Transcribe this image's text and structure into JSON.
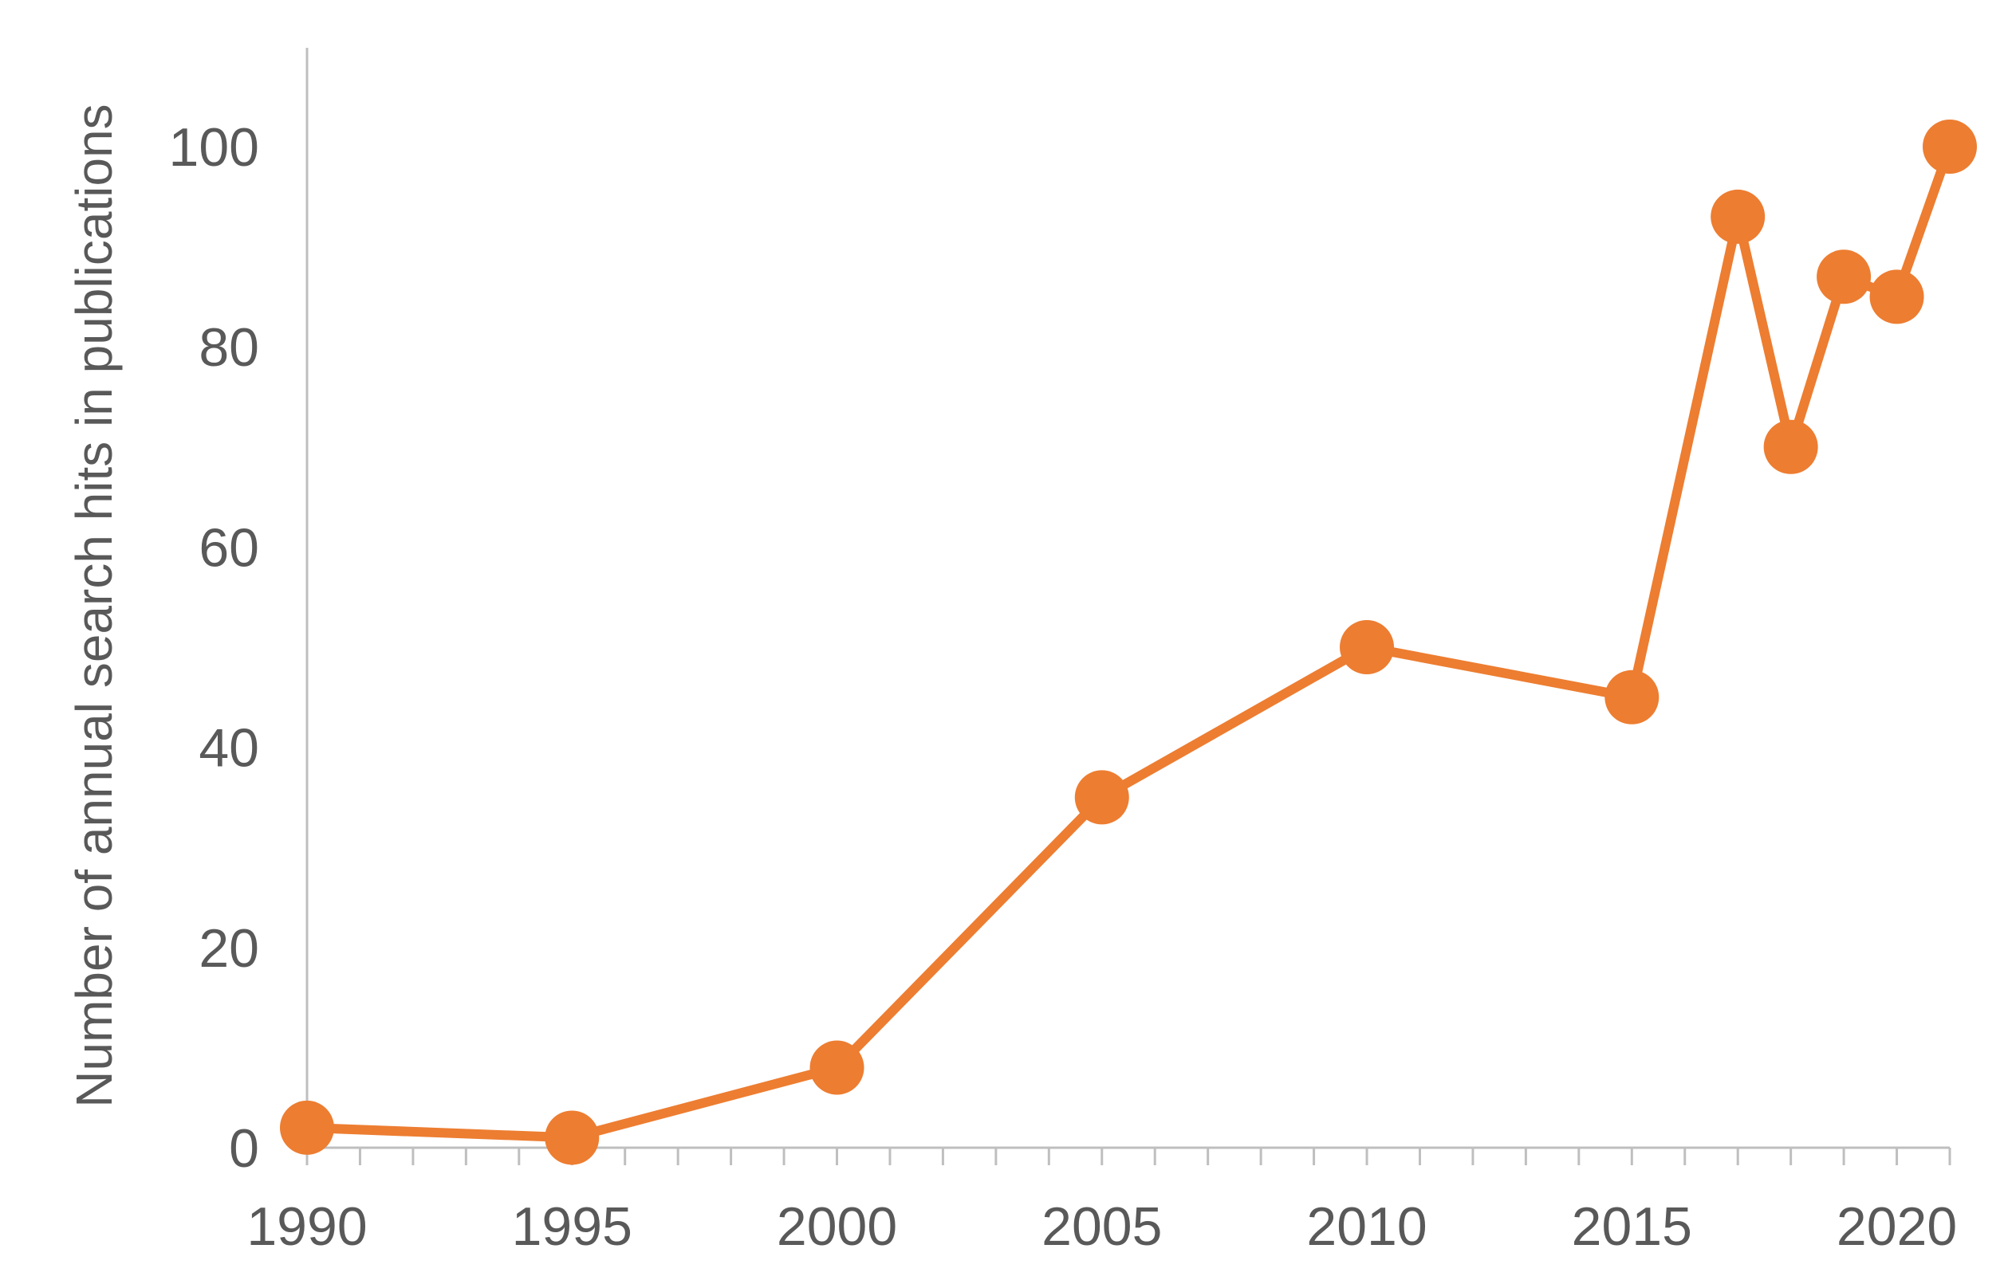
{
  "chart_data": {
    "type": "line",
    "title": "",
    "xlabel": "",
    "ylabel": "Number of annual search hits in publications",
    "xlim": [
      1990,
      2021
    ],
    "ylim": [
      0,
      110
    ],
    "x_ticks": [
      1990,
      1995,
      2000,
      2005,
      2010,
      2015,
      2020
    ],
    "y_ticks": [
      0,
      20,
      40,
      60,
      80,
      100
    ],
    "grid": false,
    "legend": "none",
    "series": [
      {
        "color": "#ED7D31",
        "x": [
          1990,
          1995,
          2000,
          2005,
          2010,
          2015,
          2017,
          2018,
          2019,
          2020,
          2021
        ],
        "y": [
          2,
          1,
          8,
          35,
          50,
          45,
          93,
          70,
          87,
          85,
          100
        ]
      }
    ],
    "axis_color": "#BFBFBF",
    "text_color": "#595959"
  }
}
